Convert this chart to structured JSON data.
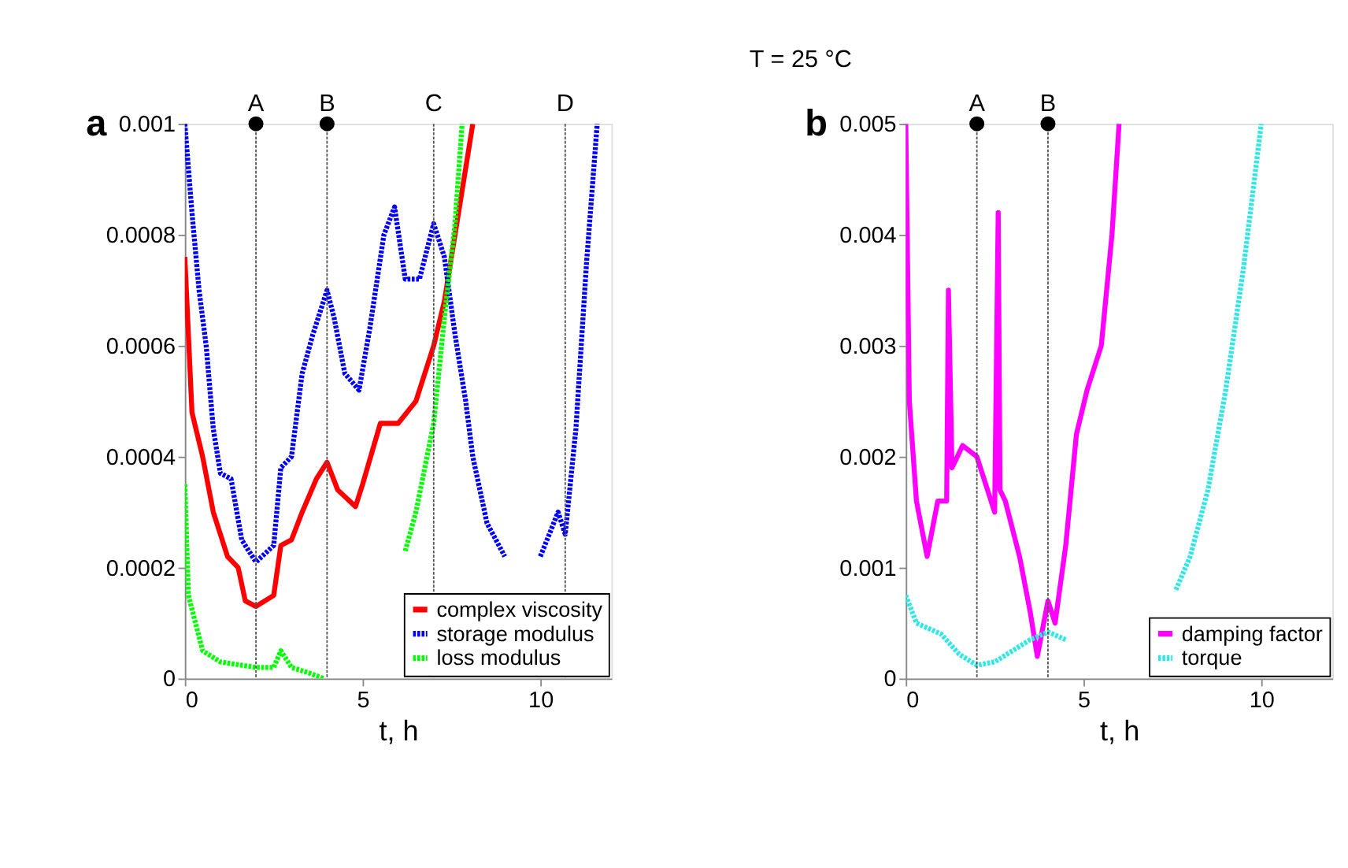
{
  "chart_data": [
    {
      "type": "line",
      "annotations": [
        "a"
      ],
      "xlabel": "t, h",
      "xlim": [
        0,
        12
      ],
      "xticks": [
        0,
        5,
        10
      ],
      "ylim": [
        0,
        0.001
      ],
      "yticks": [
        0,
        0.0002,
        0.0004,
        0.0006,
        0.0008,
        0.001
      ],
      "grid": false,
      "legend": "bottom right",
      "ref_lines": [
        {
          "axis": "x",
          "value": 2,
          "label": "A",
          "line_style": "dotted"
        },
        {
          "axis": "x",
          "value": 4,
          "label": "B",
          "line_style": "dotted"
        },
        {
          "axis": "x",
          "value": 7,
          "label": "C",
          "line_style": "dotted"
        },
        {
          "axis": "x",
          "value": 10.7,
          "label": "D",
          "line_style": "dotted"
        }
      ],
      "series": [
        {
          "name": "complex viscosity",
          "color": "#ff0000",
          "line_style": "solid",
          "x": [
            0,
            0.2,
            0.5,
            0.8,
            1.2,
            1.5,
            1.7,
            2.0,
            2.5,
            2.7,
            3.0,
            3.3,
            3.7,
            4.0,
            4.3,
            4.8,
            5.0,
            5.5,
            6.0,
            6.5,
            7.0,
            7.3,
            7.6,
            8.1
          ],
          "values": [
            0.00076,
            0.00048,
            0.0004,
            0.0003,
            0.00022,
            0.0002,
            0.00014,
            0.00013,
            0.00015,
            0.00024,
            0.00025,
            0.0003,
            0.00036,
            0.00039,
            0.00034,
            0.00031,
            0.00035,
            0.00046,
            0.00046,
            0.0005,
            0.0006,
            0.00068,
            0.0008,
            0.001
          ]
        },
        {
          "name": "storage modulus",
          "color": "#0000ff",
          "line_style": "dotted",
          "x": [
            0,
            0.2,
            0.4,
            0.6,
            0.8,
            1.0,
            1.3,
            1.6,
            2.0,
            2.5,
            2.7,
            3.0,
            3.3,
            3.6,
            4.0,
            4.2,
            4.5,
            4.9,
            5.2,
            5.6,
            5.9,
            6.2,
            6.6,
            7.0,
            7.3,
            7.6,
            7.9,
            8.1,
            8.5,
            9.0,
            9.5,
            10.0,
            10.5,
            10.7,
            11.0,
            11.3,
            11.6
          ],
          "values": [
            0.001,
            0.00084,
            0.0007,
            0.0006,
            0.00045,
            0.00037,
            0.00036,
            0.00025,
            0.00021,
            0.00024,
            0.00038,
            0.0004,
            0.00055,
            0.00062,
            0.0007,
            0.00065,
            0.00055,
            0.00052,
            0.00063,
            0.0008,
            0.00085,
            0.00072,
            0.00072,
            0.00082,
            0.00076,
            0.00062,
            0.0005,
            0.0004,
            0.00028,
            0.00022,
            null,
            0.00022,
            0.0003,
            0.00026,
            0.00045,
            0.00075,
            0.001
          ]
        },
        {
          "name": "loss modulus",
          "color": "#00ff00",
          "line_style": "dotted",
          "x": [
            0,
            0.1,
            0.5,
            1.0,
            2.0,
            2.5,
            2.7,
            3.0,
            3.5,
            3.9,
            5.0,
            6.2,
            6.5,
            7.0,
            7.3,
            7.6,
            7.8
          ],
          "values": [
            0.00035,
            0.00015,
            5e-05,
            3e-05,
            2e-05,
            2e-05,
            5e-05,
            2e-05,
            1e-05,
            0,
            null,
            0.00023,
            0.0003,
            0.00046,
            0.00065,
            0.00082,
            0.001
          ]
        }
      ]
    },
    {
      "type": "line",
      "title": "T = 25 °C",
      "annotations": [
        "b"
      ],
      "xlabel": "t, h",
      "xlim": [
        0,
        12
      ],
      "xticks": [
        0,
        5,
        10
      ],
      "ylim": [
        0,
        0.005
      ],
      "yticks": [
        0,
        0.001,
        0.002,
        0.003,
        0.004,
        0.005
      ],
      "grid": false,
      "legend": "bottom right",
      "ref_lines": [
        {
          "axis": "x",
          "value": 2,
          "label": "A",
          "line_style": "dotted"
        },
        {
          "axis": "x",
          "value": 4,
          "label": "B",
          "line_style": "dotted"
        }
      ],
      "series": [
        {
          "name": "damping factor",
          "color": "#ff00ff",
          "line_style": "solid",
          "x": [
            0,
            0.1,
            0.3,
            0.6,
            0.9,
            1.15,
            1.2,
            1.3,
            1.6,
            2.0,
            2.2,
            2.5,
            2.6,
            2.65,
            2.8,
            3.2,
            3.5,
            3.7,
            4.0,
            4.2,
            4.5,
            4.8,
            5.1,
            5.5,
            5.8,
            6.0
          ],
          "values": [
            0.005,
            0.0025,
            0.0016,
            0.0011,
            0.0016,
            0.0016,
            0.0035,
            0.0019,
            0.0021,
            0.002,
            0.0018,
            0.0015,
            0.0042,
            0.0017,
            0.0016,
            0.0011,
            0.0006,
            0.0002,
            0.0007,
            0.0005,
            0.0012,
            0.0022,
            0.0026,
            0.003,
            0.004,
            0.005
          ]
        },
        {
          "name": "torque",
          "color": "#33e6e6",
          "line_style": "dotted",
          "x": [
            0,
            0.3,
            1.0,
            1.5,
            2.0,
            2.5,
            3.0,
            3.5,
            4.0,
            4.5,
            6.0,
            7.6,
            8.0,
            8.5,
            9.0,
            9.5,
            10.0
          ],
          "values": [
            0.00075,
            0.0005,
            0.0004,
            0.00022,
            0.00012,
            0.00015,
            0.00025,
            0.00035,
            0.00042,
            0.00035,
            null,
            0.0008,
            0.0011,
            0.0017,
            0.0026,
            0.0037,
            0.005
          ]
        }
      ]
    }
  ]
}
